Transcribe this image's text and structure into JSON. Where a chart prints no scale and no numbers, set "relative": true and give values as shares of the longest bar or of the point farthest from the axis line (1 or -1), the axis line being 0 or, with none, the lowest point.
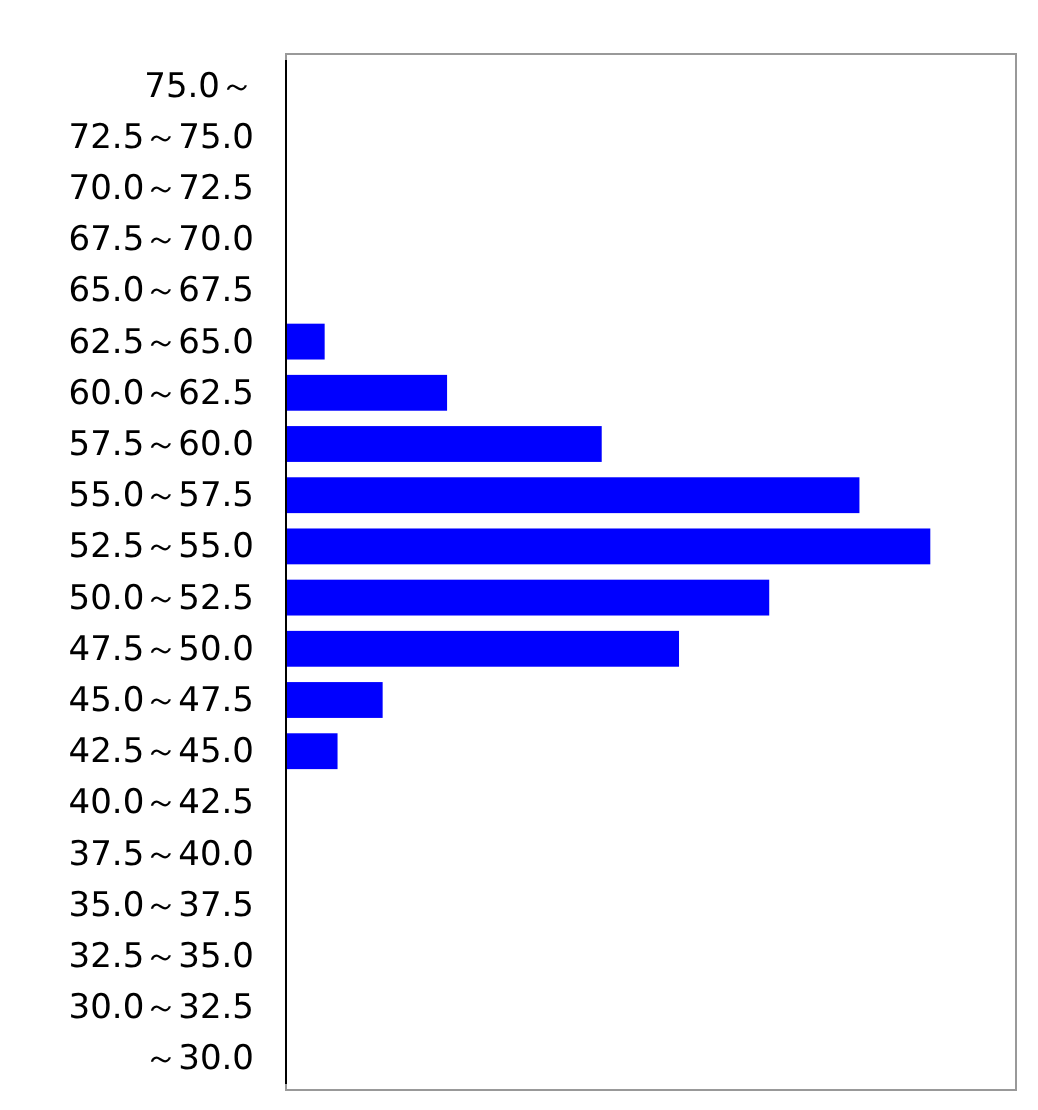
{
  "chart_data": {
    "type": "bar",
    "orientation": "horizontal",
    "relative": true,
    "categories": [
      "75.0～",
      "72.5～75.0",
      "70.0～72.5",
      "67.5～70.0",
      "65.0～67.5",
      "62.5～65.0",
      "60.0～62.5",
      "57.5～60.0",
      "55.0～57.5",
      "52.5～55.0",
      "50.0～52.5",
      "47.5～50.0",
      "45.0～47.5",
      "42.5～45.0",
      "40.0～42.5",
      "37.5～40.0",
      "35.0～37.5",
      "32.5～35.0",
      "30.0～32.5",
      "～30.0"
    ],
    "values": [
      0,
      0,
      0,
      0,
      0,
      0.06,
      0.25,
      0.49,
      0.89,
      1,
      0.75,
      0.61,
      0.15,
      0.08,
      0,
      0,
      0,
      0,
      0,
      0
    ],
    "color": "#0000ff"
  }
}
